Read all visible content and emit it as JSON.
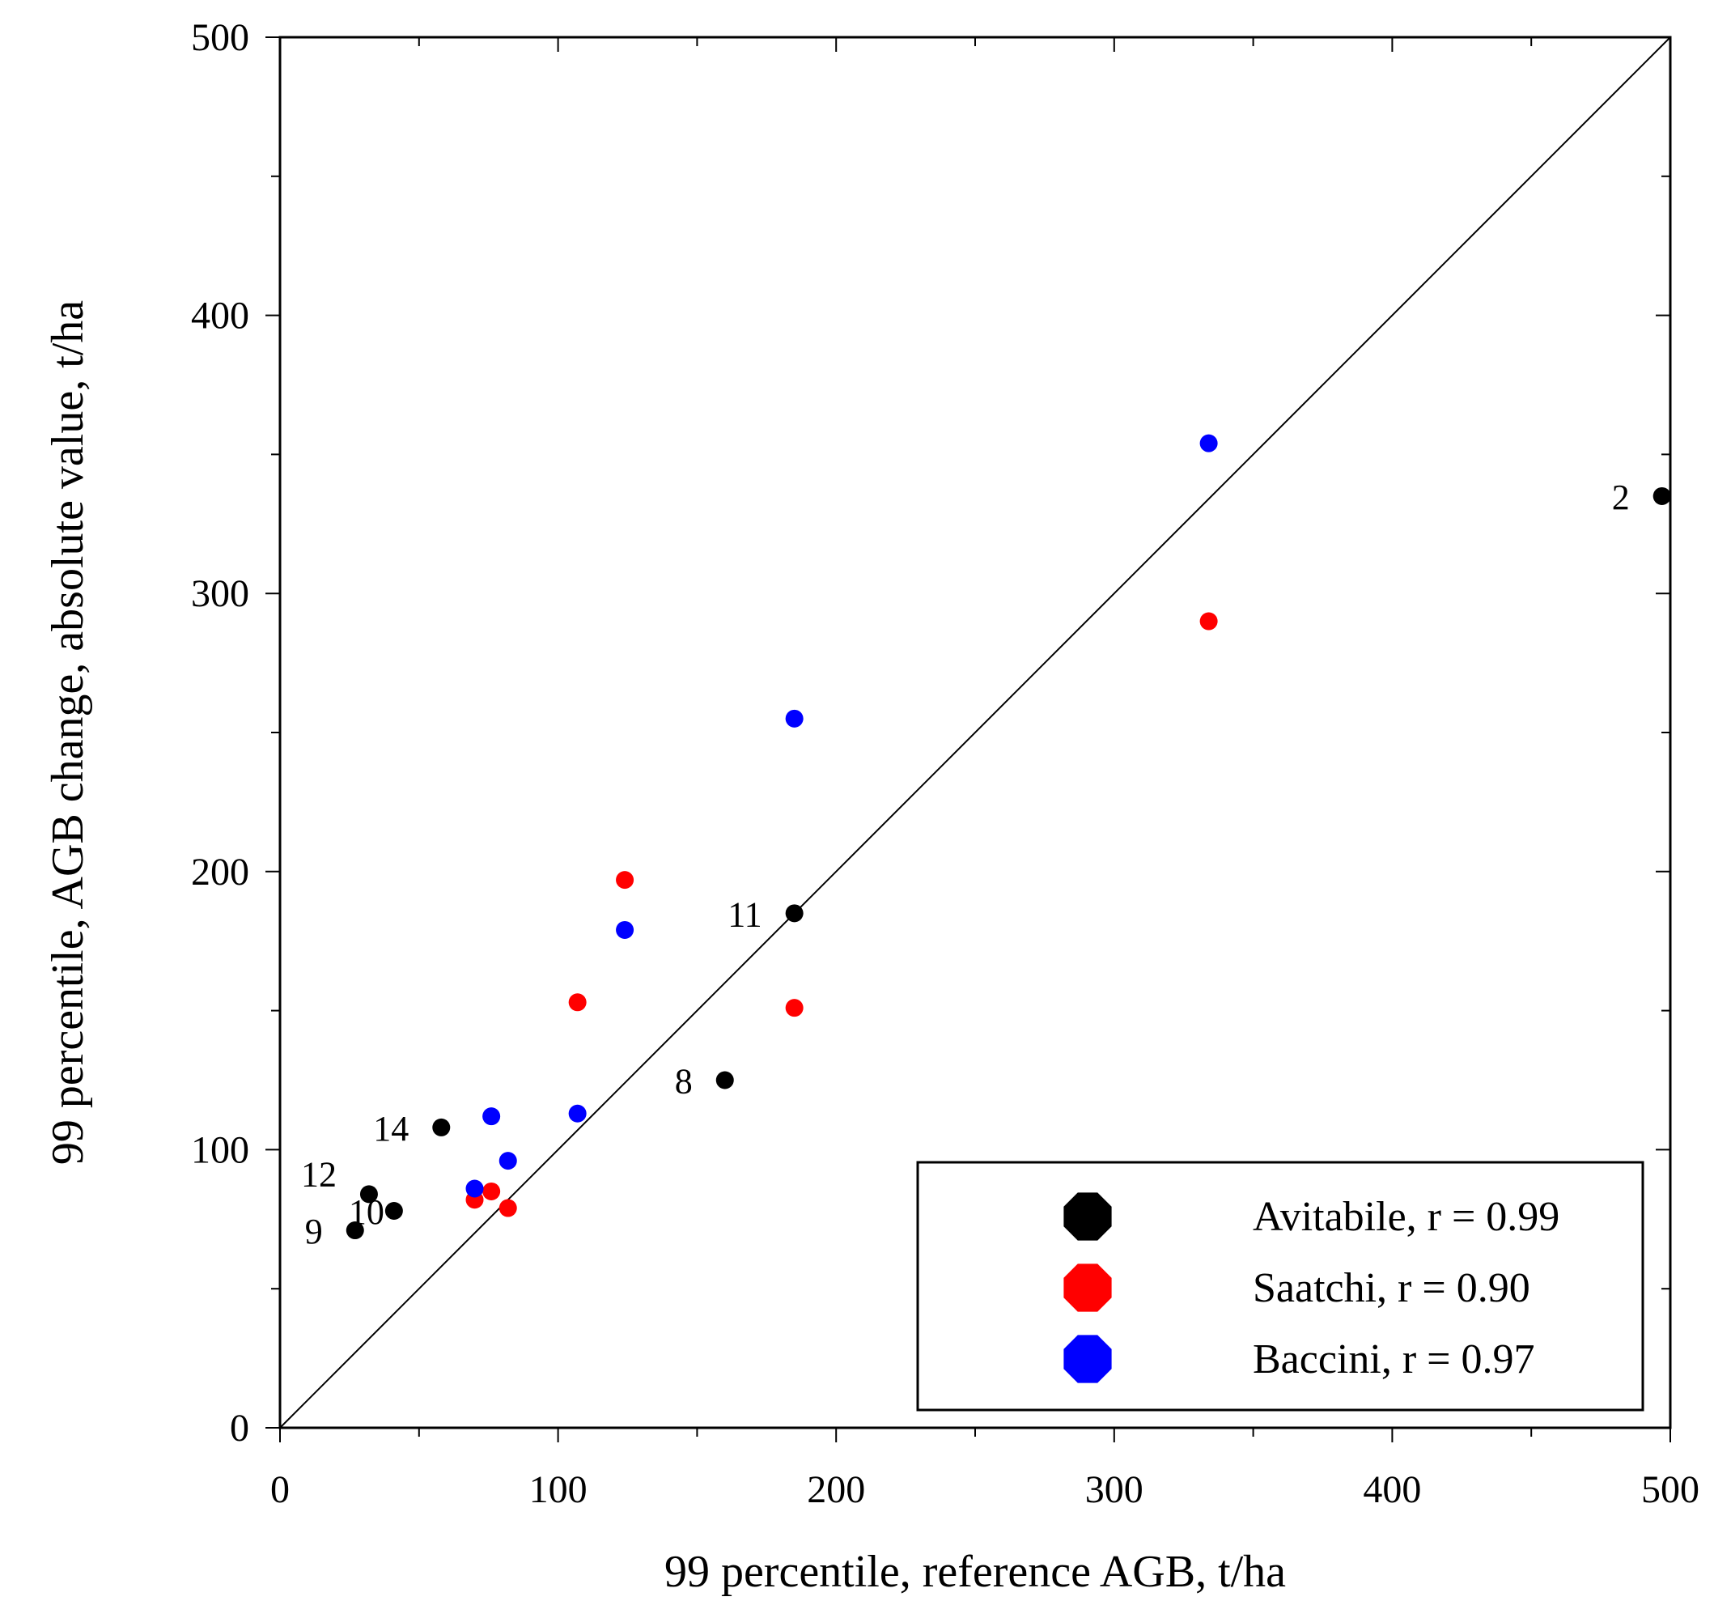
{
  "chart_data": {
    "type": "scatter",
    "title": "",
    "xlabel": "99 percentile, reference AGB, t/ha",
    "ylabel": "99 percentile, AGB change, absolute value, t/ha",
    "xlim": [
      0,
      500
    ],
    "ylim": [
      0,
      500
    ],
    "x_ticks": [
      0,
      100,
      200,
      300,
      400,
      500
    ],
    "y_ticks": [
      0,
      100,
      200,
      300,
      400,
      500
    ],
    "x_tick_labels": [
      "0",
      "100",
      "200",
      "300",
      "400",
      "500"
    ],
    "y_tick_labels": [
      "0",
      "100",
      "200",
      "300",
      "400",
      "500"
    ],
    "grid": false,
    "identity_line": true,
    "legend_position": "bottom-right",
    "series": [
      {
        "name": "Avitabile, r = 0.99",
        "color": "#000000",
        "points": [
          {
            "x": 27,
            "y": 71,
            "label": "9"
          },
          {
            "x": 32,
            "y": 84,
            "label": "12"
          },
          {
            "x": 41,
            "y": 78,
            "label": "10"
          },
          {
            "x": 58,
            "y": 108,
            "label": "14"
          },
          {
            "x": 160,
            "y": 125,
            "label": "8"
          },
          {
            "x": 185,
            "y": 185,
            "label": "11"
          },
          {
            "x": 497,
            "y": 335,
            "label": "2"
          }
        ]
      },
      {
        "name": "Saatchi, r = 0.90",
        "color": "#ff0000",
        "points": [
          {
            "x": 70,
            "y": 82
          },
          {
            "x": 76,
            "y": 85
          },
          {
            "x": 82,
            "y": 79
          },
          {
            "x": 107,
            "y": 153
          },
          {
            "x": 124,
            "y": 197
          },
          {
            "x": 185,
            "y": 151
          },
          {
            "x": 334,
            "y": 290
          }
        ]
      },
      {
        "name": "Baccini, r = 0.97",
        "color": "#0000ff",
        "points": [
          {
            "x": 70,
            "y": 86
          },
          {
            "x": 76,
            "y": 112
          },
          {
            "x": 82,
            "y": 96
          },
          {
            "x": 107,
            "y": 113
          },
          {
            "x": 124,
            "y": 179
          },
          {
            "x": 185,
            "y": 255
          },
          {
            "x": 334,
            "y": 354
          }
        ]
      }
    ]
  }
}
